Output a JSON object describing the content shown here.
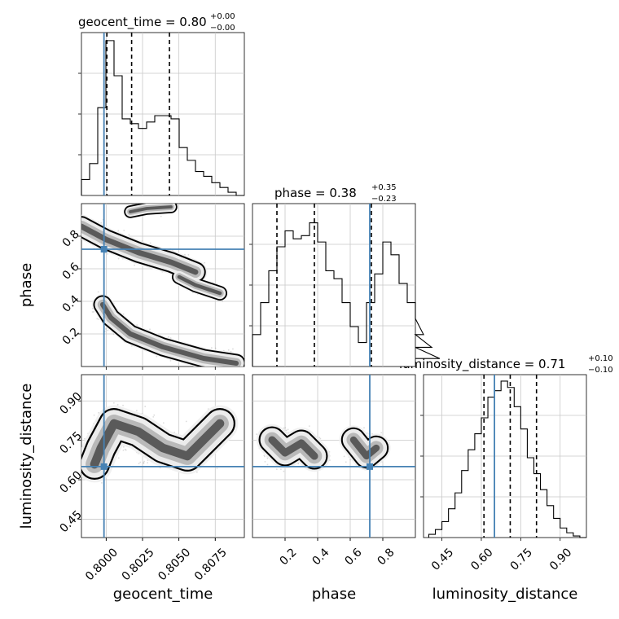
{
  "chart_data": {
    "type": "corner",
    "parameters": [
      "geocent_time",
      "phase",
      "luminosity_distance"
    ],
    "truths": {
      "geocent_time": 0.79985,
      "phase": 0.72,
      "luminosity_distance": 0.65
    },
    "titles": [
      {
        "text": "geocent_time = 0.80",
        "sup": "+0.00",
        "sub": "−0.00"
      },
      {
        "text": "phase = 0.38",
        "sup": "+0.35",
        "sub": "−0.23"
      },
      {
        "text": "luminosity_distance = 0.71",
        "sup": "+0.10",
        "sub": "−0.10"
      }
    ],
    "axis_labels": {
      "x": [
        "geocent_time",
        "phase",
        "luminosity_distance"
      ],
      "y": [
        "phase",
        "luminosity_distance"
      ]
    },
    "ranges": {
      "geocent_time": [
        0.7983,
        0.8095
      ],
      "phase": [
        0.0,
        1.0
      ],
      "luminosity_distance": [
        0.38,
        1.0
      ]
    },
    "ticks": {
      "geocent_time": {
        "values": [
          0.8,
          0.8025,
          0.805,
          0.8075
        ],
        "labels": [
          "0.8000",
          "0.8025",
          "0.8050",
          "0.8075"
        ]
      },
      "phase": {
        "values": [
          0.2,
          0.4,
          0.6,
          0.8
        ],
        "labels": [
          "0.2",
          "0.4",
          "0.6",
          "0.8"
        ]
      },
      "luminosity_distance": {
        "values": [
          0.45,
          0.6,
          0.75,
          0.9
        ],
        "labels": [
          "0.45",
          "0.60",
          "0.75",
          "0.90"
        ]
      }
    },
    "quantiles": {
      "geocent_time": [
        0.80005,
        0.80175,
        0.80435
      ],
      "phase": [
        0.15,
        0.38,
        0.73
      ],
      "luminosity_distance": [
        0.61,
        0.71,
        0.81
      ]
    },
    "histograms": {
      "geocent_time": {
        "bin_start": 0.7983,
        "bin_width": 0.00056,
        "counts": [
          0.1,
          0.2,
          0.55,
          0.97,
          0.75,
          0.48,
          0.45,
          0.42,
          0.46,
          0.5,
          0.5,
          0.48,
          0.3,
          0.22,
          0.15,
          0.12,
          0.08,
          0.05,
          0.02,
          0.0
        ]
      },
      "phase": {
        "bin_start": 0.0,
        "bin_width": 0.05,
        "counts": [
          0.2,
          0.4,
          0.6,
          0.75,
          0.85,
          0.8,
          0.82,
          0.9,
          0.78,
          0.6,
          0.55,
          0.4,
          0.25,
          0.15,
          0.4,
          0.58,
          0.78,
          0.7,
          0.52,
          0.4,
          0.3,
          0.2,
          0.12,
          0.05
        ]
      },
      "luminosity_distance": {
        "bin_start": 0.4,
        "bin_width": 0.025,
        "counts": [
          0.02,
          0.05,
          0.1,
          0.18,
          0.28,
          0.42,
          0.55,
          0.65,
          0.75,
          0.88,
          0.92,
          0.98,
          0.94,
          0.82,
          0.68,
          0.5,
          0.4,
          0.3,
          0.2,
          0.12,
          0.06,
          0.03,
          0.01,
          0.0
        ]
      }
    },
    "contour_panels": [
      "phase_vs_geocent_time",
      "luminosity_distance_vs_geocent_time",
      "luminosity_distance_vs_phase"
    ],
    "truth_color": "#4682b4",
    "line_color": "#000000"
  }
}
